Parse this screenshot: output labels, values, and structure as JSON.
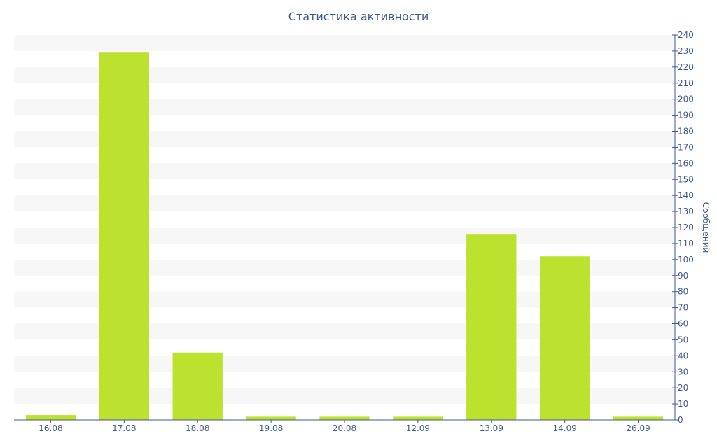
{
  "chart_data": {
    "type": "bar",
    "title": "Статистика активности",
    "xlabel": "",
    "ylabel": "Сообщений",
    "categories": [
      "16.08",
      "17.08",
      "18.08",
      "19.08",
      "20.08",
      "12.09",
      "13.09",
      "14.09",
      "26.09"
    ],
    "values": [
      3,
      229,
      42,
      2,
      2,
      2,
      116,
      102,
      2
    ],
    "ylim": [
      0,
      240
    ],
    "ytick_step": 10,
    "y_axis_side": "right",
    "grid": "alternating-bands",
    "legend": "none",
    "colors": {
      "bar": "#bce12e",
      "text": "#3f5a8f",
      "band": "#f7f7f7",
      "axis": "#3f5a8f"
    }
  }
}
